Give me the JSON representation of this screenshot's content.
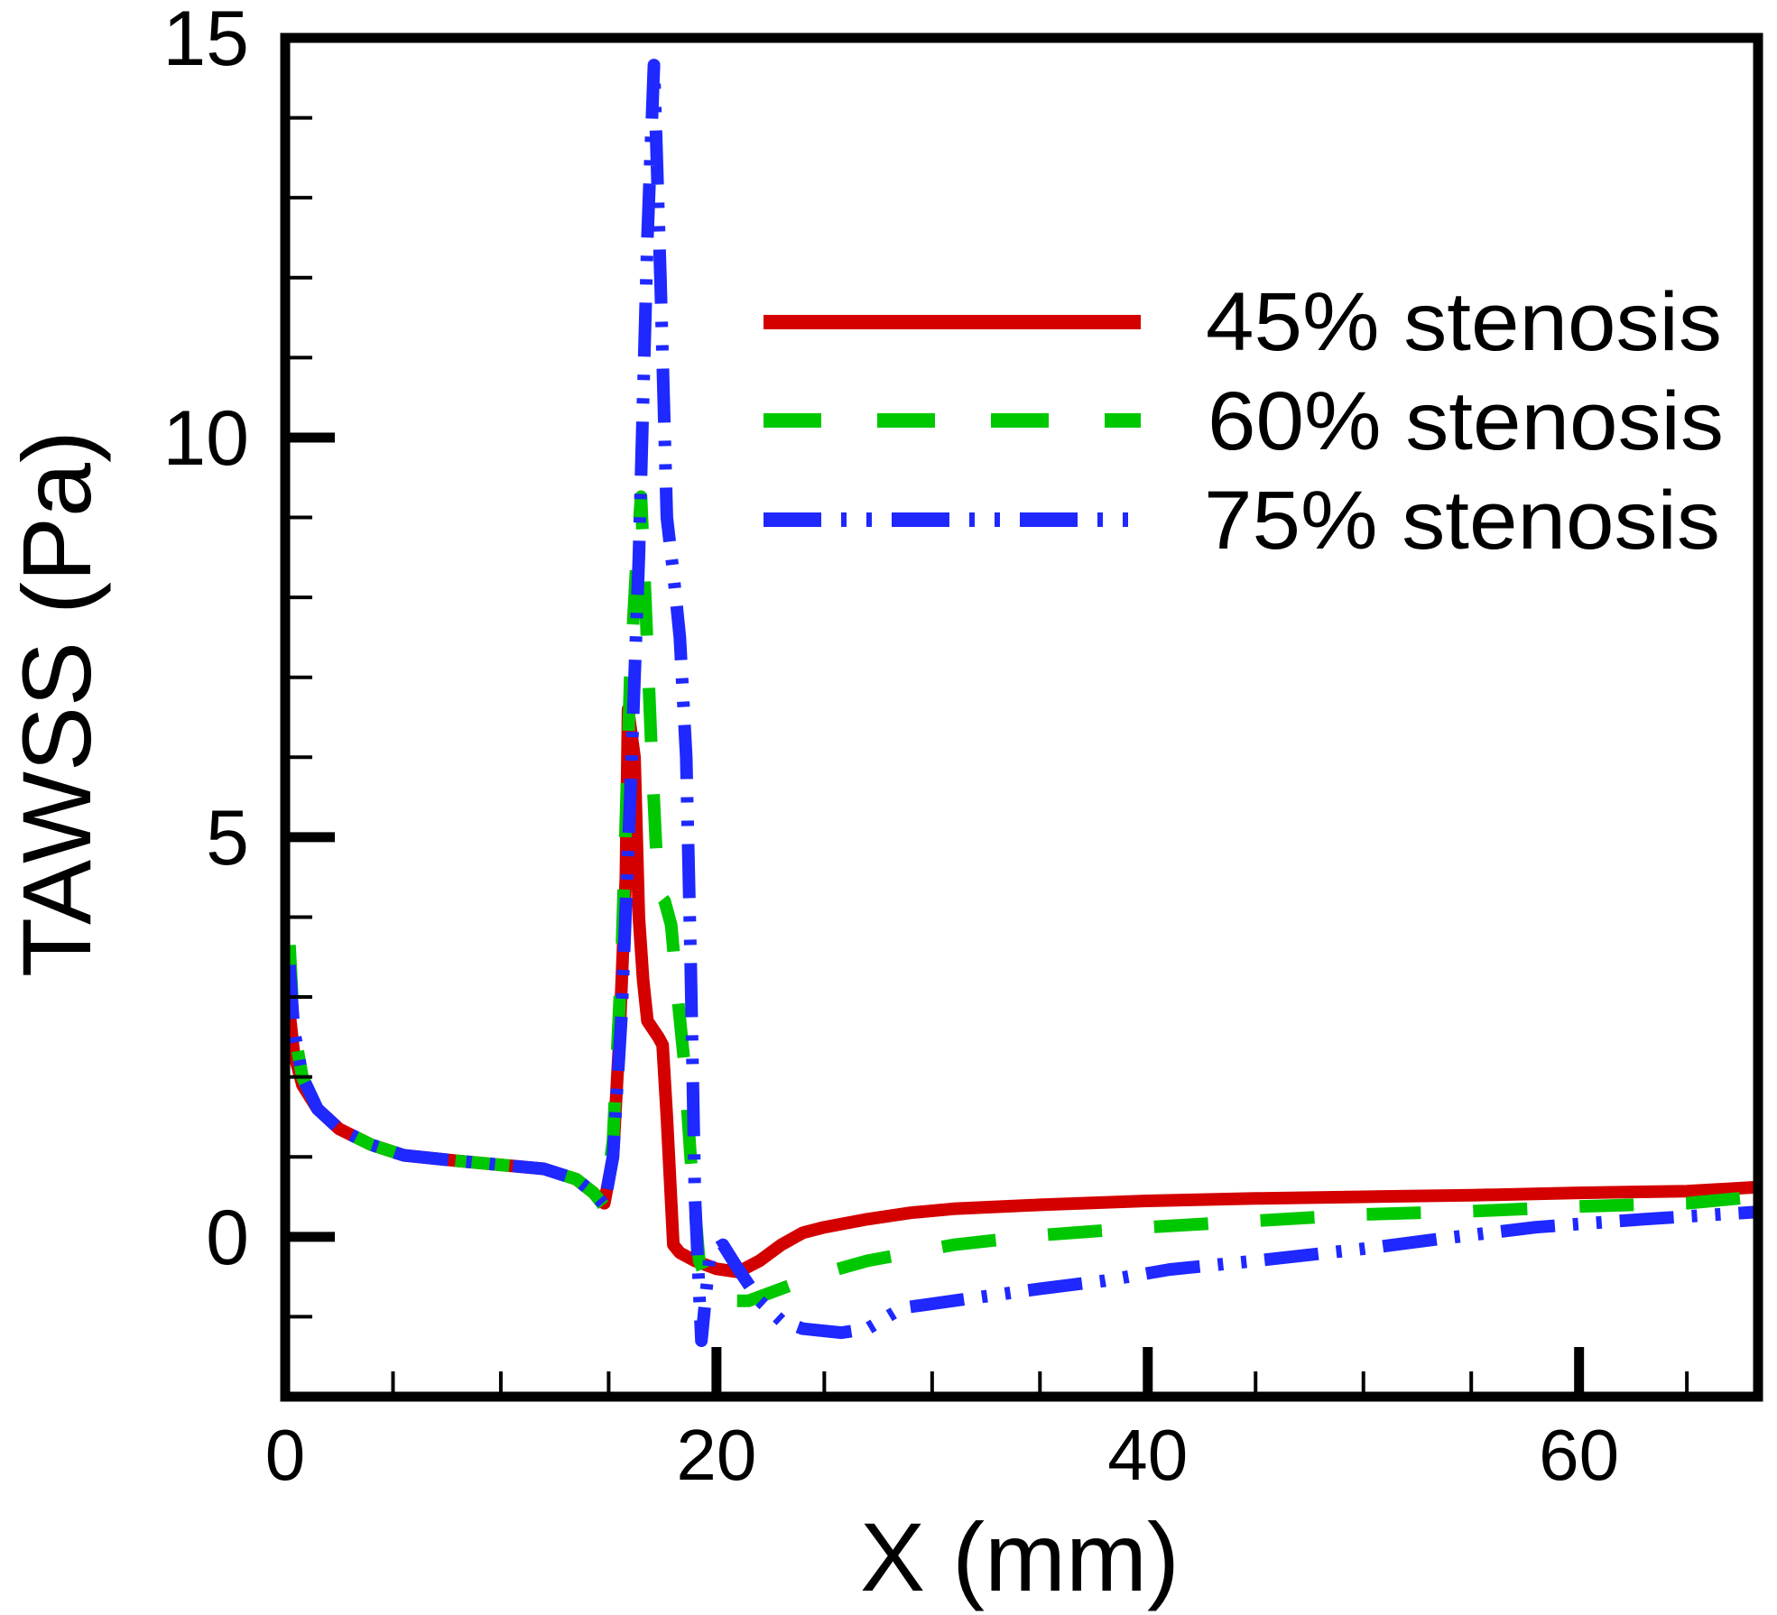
{
  "chart_data": {
    "type": "line",
    "title": "",
    "xlabel": "X (mm)",
    "ylabel": "TAWSS (Pa)",
    "xlim": [
      0,
      68.3
    ],
    "ylim": [
      -2,
      15
    ],
    "x_ticks": [
      0,
      20,
      40,
      60
    ],
    "x_tick_labels": [
      "0",
      "20",
      "40",
      "60"
    ],
    "x_minor_step": 5,
    "y_ticks": [
      0,
      5,
      10,
      15
    ],
    "y_tick_labels": [
      "0",
      "5",
      "10",
      "15"
    ],
    "y_minor_step": 1,
    "grid": false,
    "legend_position": "top-right",
    "series": [
      {
        "name": "45% stenosis",
        "color": "#d40000",
        "style": "solid",
        "x": [
          0.2,
          0.4,
          0.8,
          1.5,
          2.5,
          4,
          5.5,
          8,
          10,
          12,
          13.5,
          14.3,
          14.8,
          15.2,
          15.5,
          15.8,
          15.9,
          16.2,
          16.4,
          16.6,
          16.8,
          17.3,
          17.5,
          17.7,
          18.0,
          18.3,
          19,
          20,
          21,
          22,
          23,
          24,
          25,
          27,
          29,
          31,
          35,
          40,
          45,
          50,
          55,
          60,
          65,
          68.2
        ],
        "y": [
          2.8,
          2.3,
          1.9,
          1.6,
          1.35,
          1.15,
          1.02,
          0.95,
          0.9,
          0.85,
          0.72,
          0.55,
          0.42,
          1.0,
          2.5,
          4.5,
          6.6,
          6.0,
          4.0,
          3.2,
          2.7,
          2.5,
          2.4,
          1.5,
          -0.1,
          -0.2,
          -0.3,
          -0.4,
          -0.44,
          -0.3,
          -0.1,
          0.05,
          0.12,
          0.22,
          0.3,
          0.35,
          0.4,
          0.45,
          0.48,
          0.5,
          0.52,
          0.55,
          0.57,
          0.62
        ]
      },
      {
        "name": "60% stenosis",
        "color": "#00c800",
        "style": "dashed",
        "x": [
          0.2,
          0.4,
          0.8,
          1.5,
          2.5,
          4,
          5.5,
          8,
          10,
          12,
          13.5,
          14.3,
          14.8,
          15.2,
          15.6,
          16.0,
          16.3,
          16.5,
          16.7,
          17.0,
          17.3,
          17.6,
          17.9,
          18.2,
          18.5,
          18.8,
          19.2,
          19.8,
          20.5,
          21.5,
          22.5,
          23.5,
          25,
          27,
          29,
          31,
          35,
          40,
          45,
          50,
          55,
          60,
          65,
          68.2
        ],
        "y": [
          3.65,
          2.6,
          2.0,
          1.6,
          1.35,
          1.15,
          1.02,
          0.95,
          0.9,
          0.85,
          0.72,
          0.55,
          0.38,
          1.2,
          3.5,
          7.0,
          8.5,
          9.26,
          8.0,
          6.0,
          4.3,
          4.2,
          3.9,
          3.0,
          2.2,
          1.0,
          -0.3,
          -0.7,
          -0.8,
          -0.8,
          -0.7,
          -0.6,
          -0.45,
          -0.3,
          -0.2,
          -0.1,
          0.02,
          0.12,
          0.2,
          0.28,
          0.32,
          0.38,
          0.42,
          0.5
        ]
      },
      {
        "name": "75% stenosis",
        "color": "#1e28ff",
        "style": "dash-dot-dot",
        "x": [
          0.2,
          0.4,
          0.8,
          1.5,
          2.5,
          4,
          5.5,
          8,
          10,
          12,
          13.5,
          14.3,
          14.8,
          15.2,
          15.6,
          16.0,
          16.4,
          16.8,
          17.1,
          17.4,
          17.7,
          18.0,
          18.3,
          18.6,
          18.8,
          19.0,
          19.3,
          19.7,
          20.3,
          21,
          22,
          23,
          24,
          25.8,
          27,
          28.6,
          31,
          35,
          38,
          41,
          45,
          50,
          53.7,
          58,
          63,
          68.2
        ],
        "y": [
          3.4,
          2.6,
          2.0,
          1.6,
          1.35,
          1.15,
          1.02,
          0.95,
          0.9,
          0.85,
          0.72,
          0.55,
          0.4,
          1.0,
          2.8,
          5.5,
          8.5,
          12.5,
          14.66,
          12.0,
          9.0,
          8.3,
          7.5,
          6.0,
          3.5,
          0.5,
          -1.3,
          -0.2,
          -0.1,
          -0.4,
          -0.8,
          -1.05,
          -1.15,
          -1.2,
          -1.15,
          -0.89,
          -0.8,
          -0.65,
          -0.55,
          -0.41,
          -0.3,
          -0.15,
          -0.02,
          0.12,
          0.22,
          0.31
        ]
      }
    ]
  }
}
